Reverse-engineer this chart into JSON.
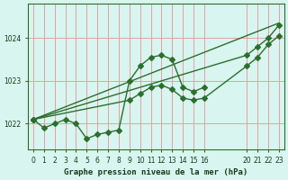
{
  "title": "Graphe pression niveau de la mer (hPa)",
  "bg_color": "#d8f5f0",
  "grid_color": "#e8a0a0",
  "line_color": "#2d6e2d",
  "marker_color": "#2d6e2d",
  "ylim": [
    1021.4,
    1024.8
  ],
  "xlim": [
    -0.5,
    23.5
  ],
  "xticks": [
    0,
    1,
    2,
    3,
    4,
    5,
    6,
    7,
    8,
    9,
    10,
    11,
    12,
    13,
    14,
    15,
    16,
    20,
    21,
    22,
    23
  ],
  "xtick_labels": [
    "0",
    "1",
    "2",
    "3",
    "4",
    "5",
    "6",
    "7",
    "8",
    "9",
    "10",
    "11",
    "12",
    "13",
    "14",
    "15",
    "16",
    "20",
    "21",
    "22",
    "23"
  ],
  "yticks": [
    1022,
    1023,
    1024
  ],
  "series": [
    {
      "x": [
        0,
        1,
        2,
        3,
        4,
        5,
        6,
        7,
        8,
        9,
        10,
        11,
        12,
        13,
        14,
        15,
        16,
        20,
        21,
        22,
        23
      ],
      "y": [
        1022.1,
        1021.9,
        1022.0,
        1022.1,
        1022.0,
        1021.65,
        1021.75,
        1021.8,
        1021.85,
        1023.0,
        1023.35,
        1023.55,
        1023.6,
        1023.5,
        1022.85,
        1022.75,
        null,
        null,
        null,
        null,
        null
      ]
    },
    {
      "x": [
        0,
        16,
        20,
        21,
        22,
        23
      ],
      "y": [
        1022.1,
        null,
        1023.6,
        1023.8,
        1024.0,
        1024.3
      ]
    },
    {
      "x": [
        0,
        20,
        21,
        22,
        23
      ],
      "y": [
        1022.1,
        1023.35,
        1023.55,
        1023.85,
        1024.05
      ]
    },
    {
      "x": [
        0,
        20,
        21,
        22,
        23
      ],
      "y": [
        1022.1,
        1023.1,
        1023.4,
        1023.7,
        1024.35
      ]
    }
  ],
  "line1": {
    "x": [
      0,
      1,
      2,
      3,
      4,
      5,
      6,
      7,
      8,
      9,
      10,
      11,
      12,
      13,
      14,
      15,
      16
    ],
    "y": [
      1022.1,
      1021.9,
      1022.0,
      1022.1,
      1022.0,
      1021.65,
      1021.75,
      1021.8,
      1021.85,
      1023.0,
      1023.35,
      1023.55,
      1023.6,
      1023.5,
      1022.85,
      1022.75,
      1022.85
    ]
  },
  "line2_x": [
    0,
    23
  ],
  "line2_y": [
    1022.1,
    1024.35
  ],
  "line3": {
    "x": [
      0,
      9,
      10,
      11,
      12,
      13,
      14,
      15,
      16,
      20,
      21,
      22,
      23
    ],
    "y": [
      1022.1,
      1022.55,
      1022.7,
      1022.85,
      1022.9,
      1022.8,
      1022.6,
      1022.55,
      1022.6,
      1023.35,
      1023.55,
      1023.85,
      1024.05
    ]
  },
  "line4": {
    "x": [
      0,
      20,
      21,
      22,
      23
    ],
    "y": [
      1022.1,
      1023.6,
      1023.8,
      1024.0,
      1024.3
    ]
  }
}
